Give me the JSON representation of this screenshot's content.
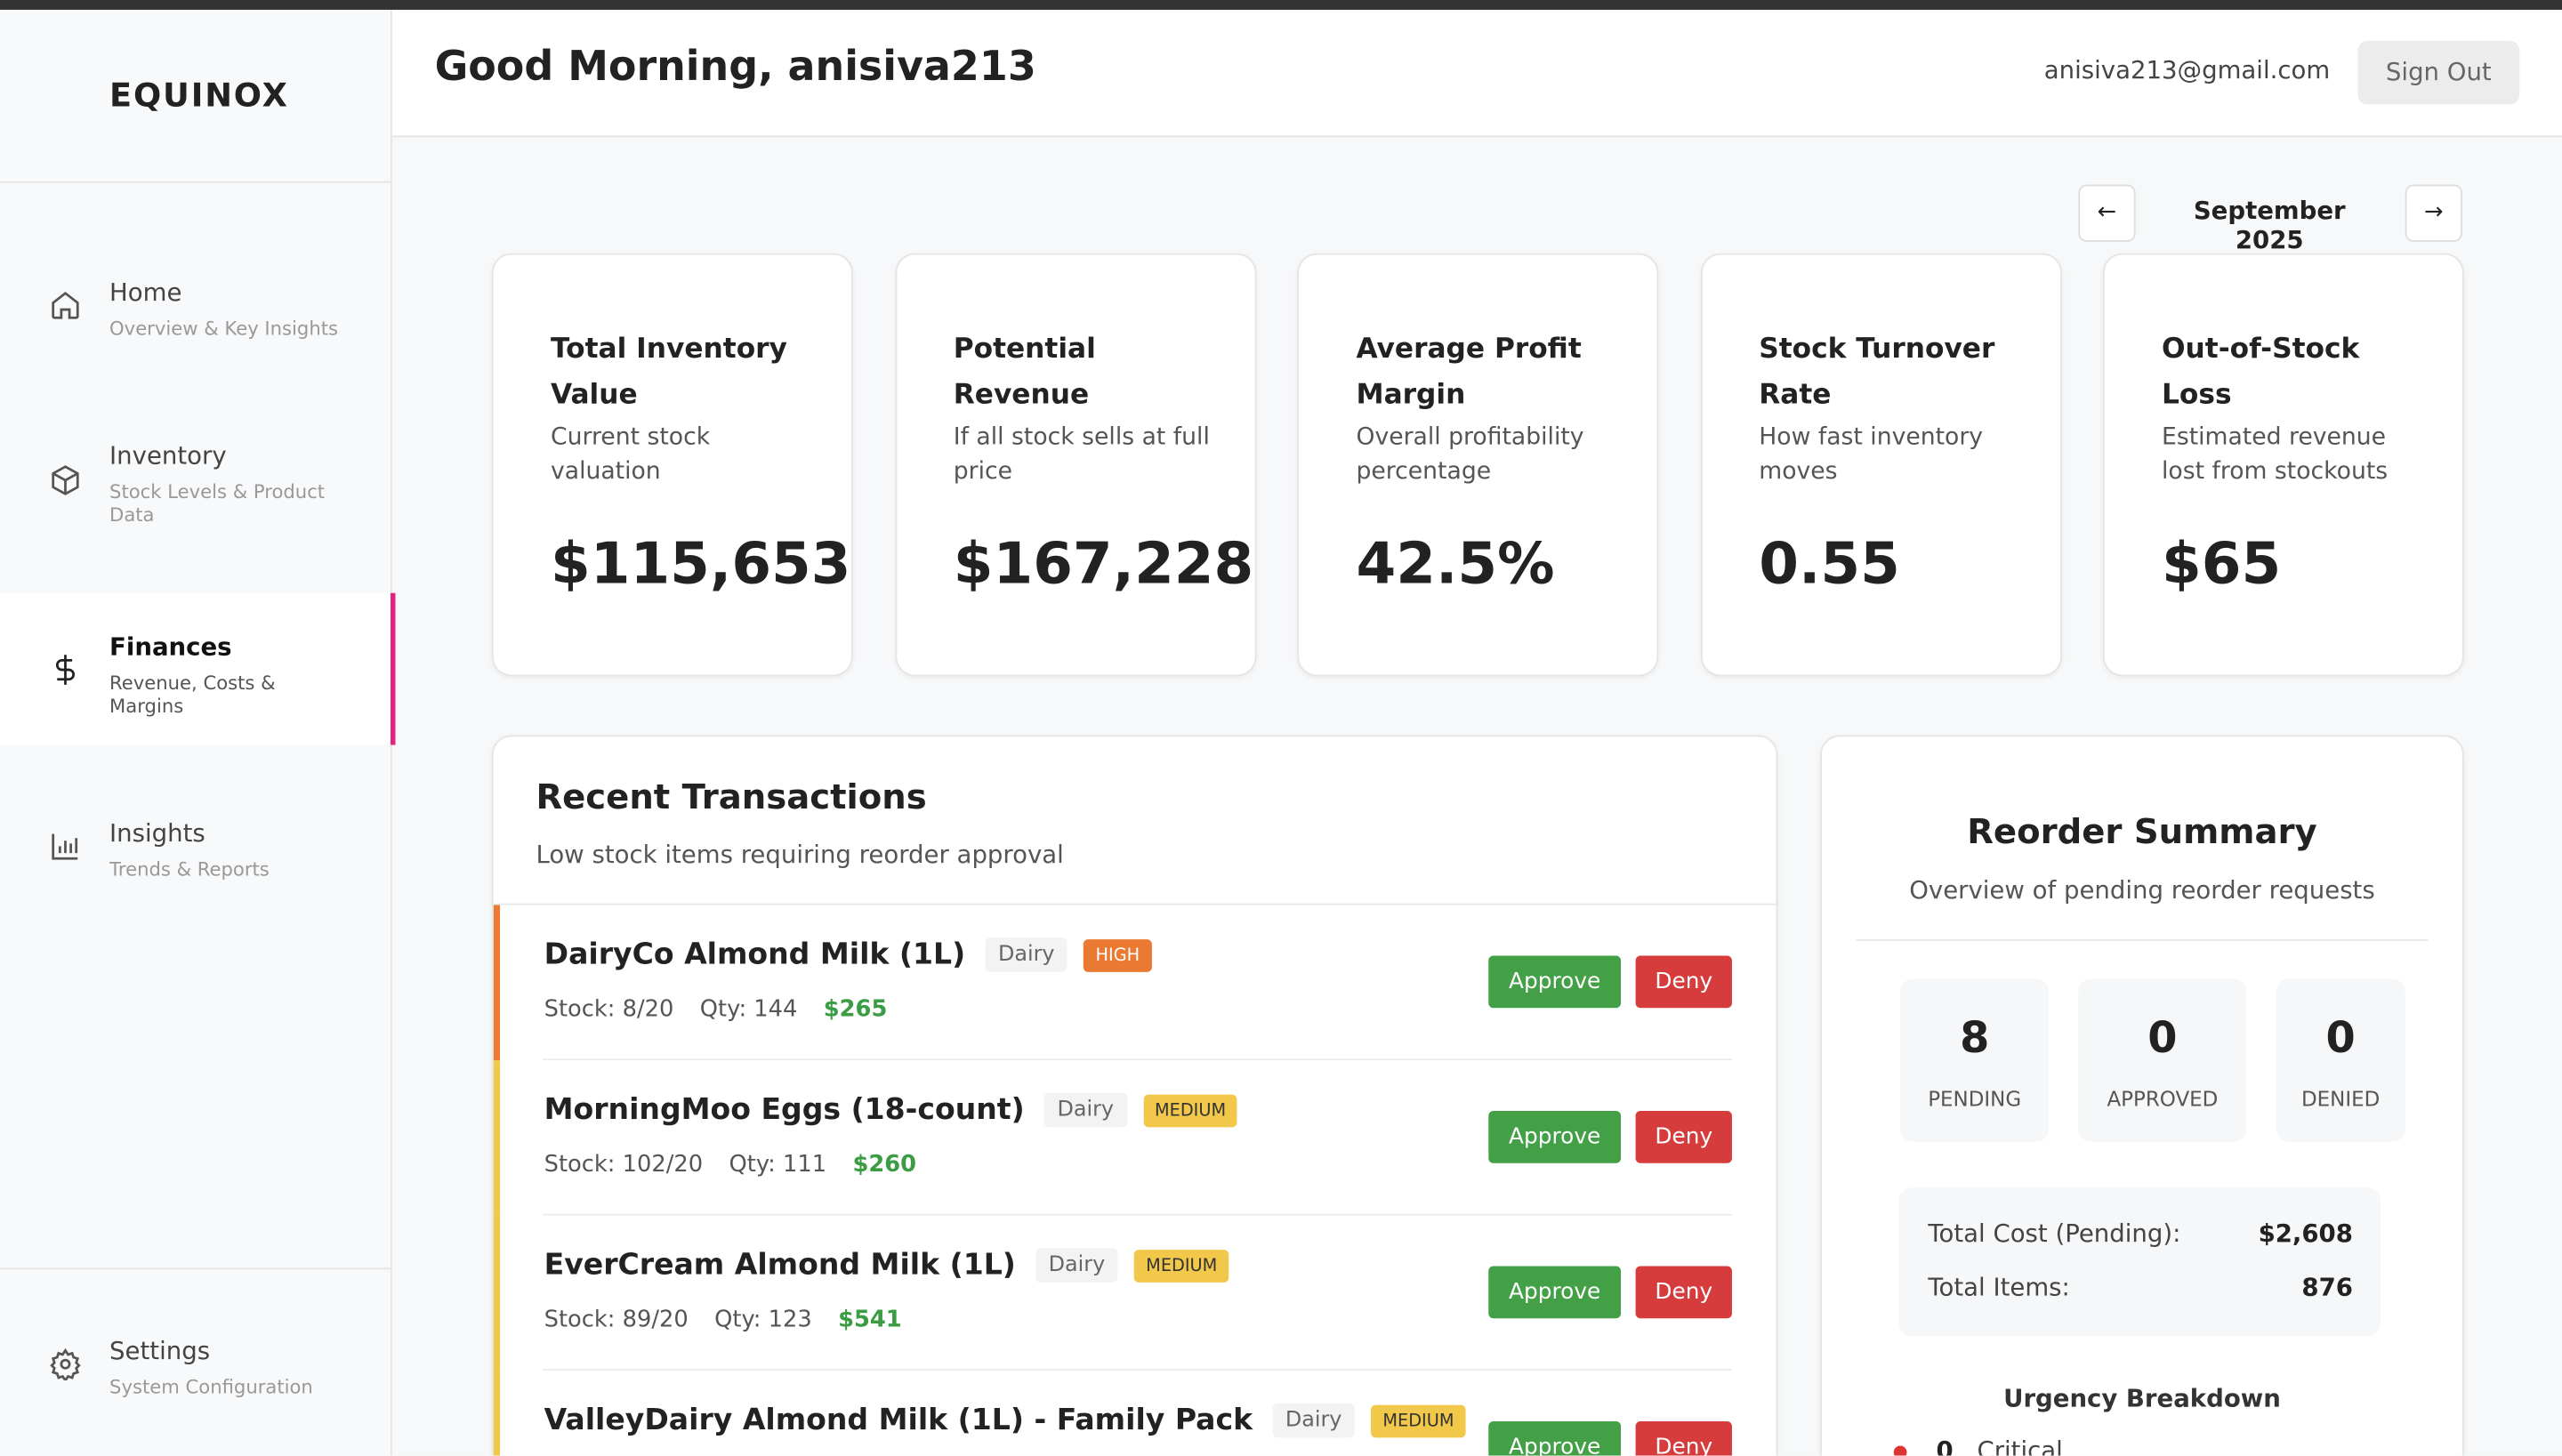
{
  "sidebar": {
    "logo": "EQUINOX",
    "nav": [
      {
        "title": "Home",
        "subtitle": "Overview & Key Insights"
      },
      {
        "title": "Inventory",
        "subtitle": "Stock Levels & Product Data"
      },
      {
        "title": "Finances",
        "subtitle": "Revenue, Costs & Margins"
      },
      {
        "title": "Insights",
        "subtitle": "Trends & Reports"
      }
    ],
    "settings": {
      "title": "Settings",
      "subtitle": "System Configuration"
    }
  },
  "header": {
    "greeting": "Good Morning, anisiva213",
    "email": "anisiva213@gmail.com",
    "sign_out": "Sign Out"
  },
  "month": "September 2025",
  "kpis": [
    {
      "title": "Total Inventory Value",
      "description": "Current stock valuation",
      "value": "$115,653"
    },
    {
      "title": "Potential Revenue",
      "description": "If all stock sells at full price",
      "value": "$167,228"
    },
    {
      "title": "Average Profit Margin",
      "description": "Overall profitability percentage",
      "value": "42.5%"
    },
    {
      "title": "Stock Turnover Rate",
      "description": "How fast inventory moves",
      "value": "0.55"
    },
    {
      "title": "Out-of-Stock Loss",
      "description": "Estimated revenue lost from stockouts",
      "value": "$65"
    }
  ],
  "transactions": {
    "title": "Recent Transactions",
    "subtitle": "Low stock items requiring reorder approval",
    "approve": "Approve",
    "deny": "Deny",
    "items": [
      {
        "name": "DairyCo Almond Milk (1L)",
        "category": "Dairy",
        "urgency": "HIGH",
        "stock": "Stock: 8/20",
        "qty": "Qty: 144",
        "cost": "$265"
      },
      {
        "name": "MorningMoo Eggs (18-count)",
        "category": "Dairy",
        "urgency": "MEDIUM",
        "stock": "Stock: 102/20",
        "qty": "Qty: 111",
        "cost": "$260"
      },
      {
        "name": "EverCream Almond Milk (1L)",
        "category": "Dairy",
        "urgency": "MEDIUM",
        "stock": "Stock: 89/20",
        "qty": "Qty: 123",
        "cost": "$541"
      },
      {
        "name": "ValleyDairy Almond Milk (1L) - Family Pack",
        "category": "Dairy",
        "urgency": "MEDIUM",
        "stock": "",
        "qty": "",
        "cost": ""
      }
    ]
  },
  "reorder": {
    "title": "Reorder Summary",
    "subtitle": "Overview of pending reorder requests",
    "stats": [
      {
        "value": "8",
        "label": "PENDING"
      },
      {
        "value": "0",
        "label": "APPROVED"
      },
      {
        "value": "0",
        "label": "DENIED"
      }
    ],
    "total_cost_label": "Total Cost (Pending):",
    "total_cost": "$2,608",
    "total_items_label": "Total Items:",
    "total_items": "876",
    "breakdown_title": "Urgency Breakdown",
    "breakdown": [
      {
        "count": "0",
        "label": "Critical"
      }
    ]
  }
}
